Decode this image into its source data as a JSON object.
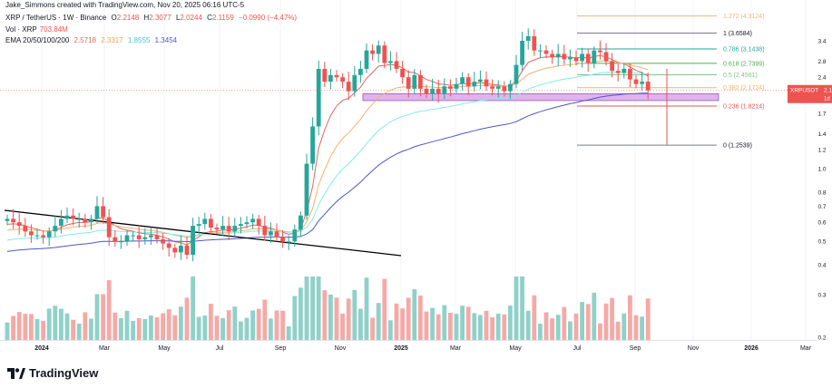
{
  "header": {
    "credit": "Jake_Simmons created with TradingView.com, Nov 20, 2025 06:16 UTC-5",
    "symbol": "XRP / TetherUS · 1W · Binance",
    "o_label": "O",
    "o_value": "2.2148",
    "h_label": "H",
    "h_value": "2.3077",
    "l_label": "L",
    "l_value": "2.0244",
    "c_label": "C",
    "c_value": "2.1159",
    "change": "−0.0990 (−4.47%)",
    "vol_label": "Vol · XRP",
    "vol_value": "703.84M",
    "ema_label": "EMA 20/50/100/200",
    "ema20": "2.5718",
    "ema50": "2.3317",
    "ema100": "1.8555",
    "ema200": "1.3454"
  },
  "price_tag": {
    "symbol": "XRPUSDT",
    "value": "2.1",
    "sub": "1d"
  },
  "logo_text": "TradingView",
  "colors": {
    "up": "#26a69a",
    "down": "#ef5350",
    "vol_up": "#8fd1c8",
    "vol_down": "#f5a9a6",
    "ema20": "#e0675f",
    "ema50": "#f6b26b",
    "ema100": "#86e9ec",
    "ema200": "#4d56c8",
    "trend": "#000000",
    "zone": "#e0b3ec"
  },
  "chart_data": {
    "type": "candlestick",
    "x_ticks": [
      "2024",
      "Mar",
      "May",
      "Jul",
      "Sep",
      "Nov",
      "2025",
      "Mar",
      "May",
      "Jul",
      "Sep",
      "Nov",
      "2026",
      "Mar"
    ],
    "y_ticks": [
      "3.4",
      "2.8",
      "2.4",
      "2.0",
      "1.7",
      "1.4",
      "1.2",
      "1.0",
      "0.8",
      "0.7",
      "0.6",
      "0.5",
      "0.4",
      "0.3",
      "0.2"
    ],
    "fib_levels": [
      {
        "label": "1.272 (4.3124)",
        "value": 4.3124
      },
      {
        "label": "1 (3.6584)",
        "value": 3.6584
      },
      {
        "label": "0.786 (3.1438)",
        "value": 3.1438
      },
      {
        "label": "0.618 (2.7399)",
        "value": 2.7399
      },
      {
        "label": "0.5 (2.4561)",
        "value": 2.4561
      },
      {
        "label": "0.382 (2.1724)",
        "value": 2.1724
      },
      {
        "label": "0.236 (1.8214)",
        "value": 1.8214
      },
      {
        "label": "0 (1.2539)",
        "value": 1.2539
      }
    ],
    "candles_2024": [
      0.62,
      0.6,
      0.58,
      0.55,
      0.53,
      0.53,
      0.52,
      0.55,
      0.58,
      0.62,
      0.64,
      0.62,
      0.62,
      0.6,
      0.62,
      0.7,
      0.63,
      0.52,
      0.5,
      0.5,
      0.53,
      0.53,
      0.51,
      0.52,
      0.53,
      0.51,
      0.49,
      0.47,
      0.45,
      0.48,
      0.44,
      0.58,
      0.59,
      0.62,
      0.57,
      0.56,
      0.58,
      0.55,
      0.58,
      0.59,
      0.6,
      0.62,
      0.58,
      0.53,
      0.55,
      0.52,
      0.5,
      0.5,
      0.56,
      0.64,
      1.05,
      1.5,
      2.6,
      2.3,
      2.45,
      2.4,
      2.3,
      2.1
    ],
    "candles_2025": [
      2.45,
      2.6,
      3.1,
      3.0,
      3.25,
      2.75,
      2.8,
      2.6,
      2.4,
      2.15,
      2.45,
      2.15,
      2.05,
      2.15,
      2.05,
      2.2,
      2.15,
      2.25,
      2.4,
      2.2,
      2.3,
      2.35,
      2.2,
      2.15,
      2.2,
      2.1,
      2.25,
      2.7,
      3.4,
      3.55,
      3.1,
      3.1,
      3.0,
      2.9,
      3.0,
      2.85,
      2.9,
      2.8,
      3.0,
      2.75,
      3.1,
      3.05,
      2.8,
      2.55,
      2.5,
      2.6,
      2.35,
      2.25,
      2.3,
      2.1159
    ],
    "trendline": {
      "start": 0.75,
      "end": 0.65
    }
  }
}
